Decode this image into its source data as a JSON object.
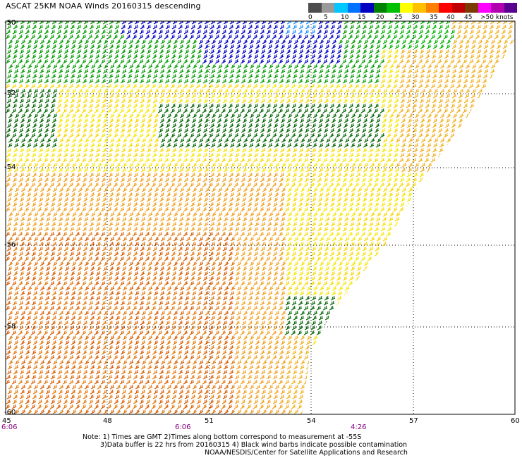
{
  "title": "ASCAT 25KM NOAA Winds 20160315 descending",
  "legend": {
    "labels": [
      "0",
      "5",
      "10",
      "15",
      "20",
      "25",
      "30",
      "35",
      "40",
      "45",
      ">50 knots"
    ],
    "colors": [
      "#4d4d4d",
      "#9a9a9a",
      "#00c8ff",
      "#0070ff",
      "#0000c0",
      "#008000",
      "#00c000",
      "#ffff00",
      "#ffc000",
      "#ff8000",
      "#ff0000",
      "#c00000",
      "#7a3a00",
      "#ff00ff",
      "#b000b0",
      "#5a0090"
    ]
  },
  "map": {
    "lat_labels": [
      "-50",
      "-52",
      "-54",
      "-56",
      "-58",
      "-60"
    ],
    "lon_labels": [
      "45",
      "48",
      "51",
      "54",
      "57",
      "60"
    ],
    "time_labels": [
      "6:06",
      "6:06",
      "4:26"
    ]
  },
  "notes": {
    "line1": "Note: 1) Times are GMT 2)Times along bottom correspond to measurement at -55S",
    "line2": "3)Data buffer is 22 hrs from 20160315 4) Black wind barbs indicate possible contamination",
    "line3": "NOAA/NESDIS/Center for Satellite Applications and Research"
  }
}
